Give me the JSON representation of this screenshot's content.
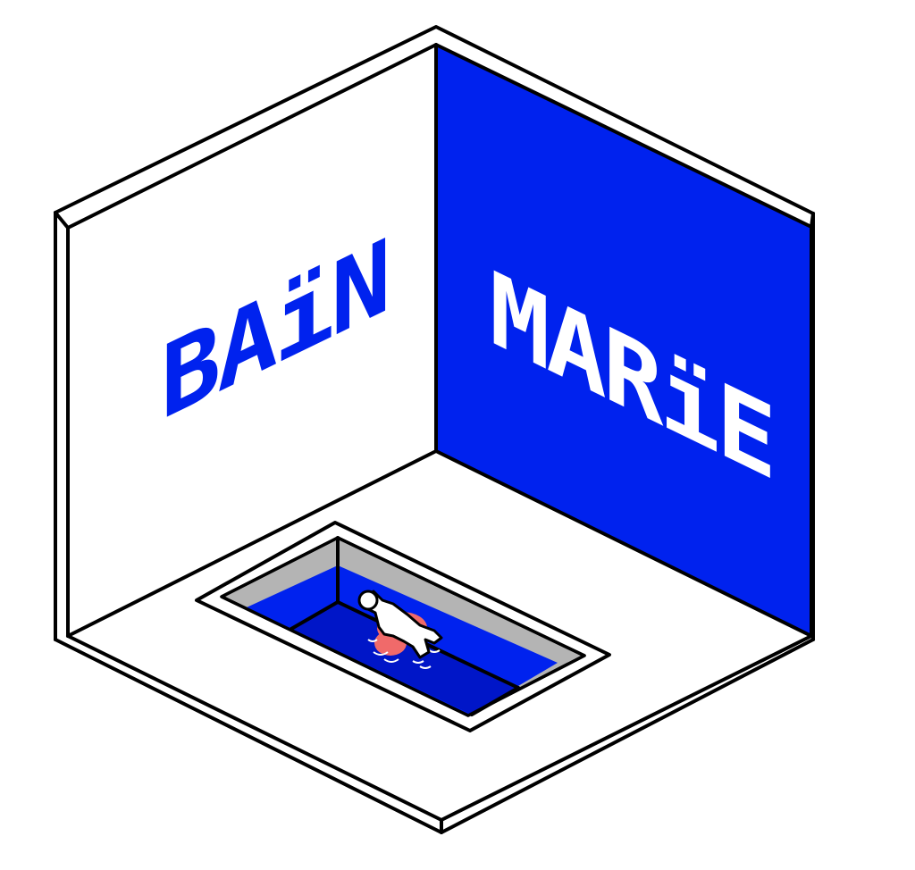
{
  "scene": {
    "left_wall_text": "BAïN",
    "right_wall_text": "MARïE",
    "colors": {
      "background": "#ffffff",
      "wall_left": "#ffffff",
      "wall_right": "#0022ee",
      "floor": "#ffffff",
      "outline": "#000000",
      "water": "#0022ee",
      "water_deep": "#0016c8",
      "tub_rim_inner": "#b4b4b4",
      "float_ring": "#f06a6a",
      "figure": "#ffffff",
      "text_left": "#0022ee",
      "text_right": "#ffffff"
    },
    "icons": {
      "bather": "person-floating-icon",
      "ring": "swim-ring-icon"
    }
  }
}
